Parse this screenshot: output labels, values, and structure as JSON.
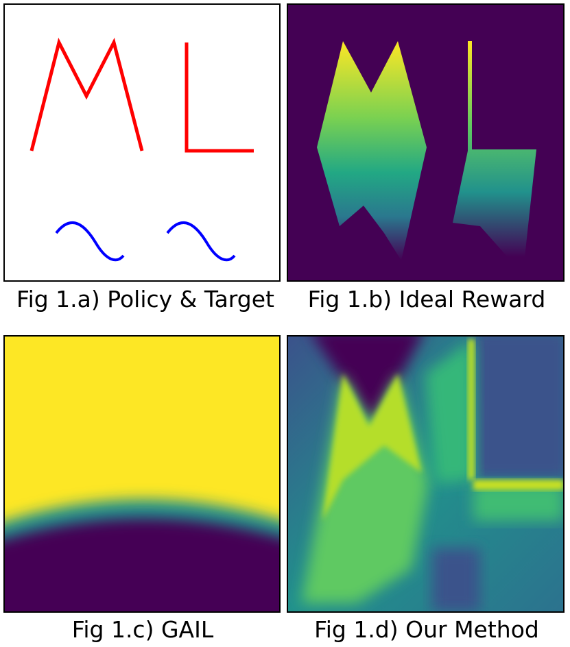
{
  "figures": [
    {
      "caption": "Fig 1.a) Policy & Target"
    },
    {
      "caption": "Fig 1.b) Ideal Reward"
    },
    {
      "caption": "Fig 1.c) GAIL"
    },
    {
      "caption": "Fig 1.d) Our Method"
    }
  ]
}
